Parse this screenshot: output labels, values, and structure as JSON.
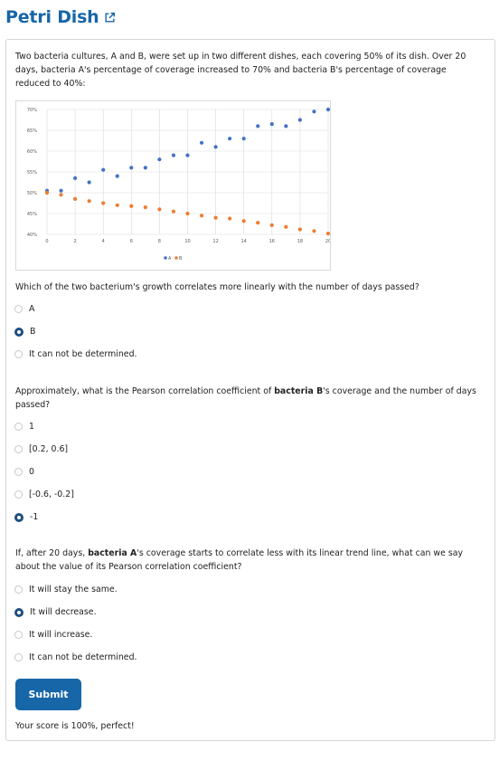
{
  "page": {
    "title": "Petri Dish",
    "intro": "Two bacteria cultures, A and B, were set up in two different dishes, each covering 50% of its dish. Over 20 days, bacteria A's percentage of coverage increased to 70% and bacteria B's percentage of coverage reduced to 40%:"
  },
  "chart_data": {
    "type": "scatter",
    "title": "",
    "xlabel": "",
    "ylabel": "",
    "xlim": [
      0,
      20
    ],
    "ylim": [
      40,
      70
    ],
    "x_ticks": [
      "0",
      "2",
      "4",
      "6",
      "8",
      "10",
      "12",
      "14",
      "16",
      "18",
      "20"
    ],
    "y_ticks": [
      "40%",
      "45%",
      "50%",
      "55%",
      "60%",
      "65%",
      "70%"
    ],
    "grid": true,
    "legend_position": "bottom",
    "series": [
      {
        "name": "A",
        "color": "#4472c4",
        "x": [
          0,
          1,
          2,
          3,
          4,
          5,
          6,
          7,
          8,
          9,
          10,
          11,
          12,
          13,
          14,
          15,
          16,
          17,
          18,
          19,
          20
        ],
        "y": [
          50.5,
          50.5,
          53.5,
          52.5,
          55.5,
          54,
          56,
          56,
          58,
          59,
          59,
          62,
          61,
          63,
          63,
          66,
          66.5,
          66,
          67.5,
          69.5,
          70
        ]
      },
      {
        "name": "B",
        "color": "#ed7d31",
        "x": [
          0,
          1,
          2,
          3,
          4,
          5,
          6,
          7,
          8,
          9,
          10,
          11,
          12,
          13,
          14,
          15,
          16,
          17,
          18,
          19,
          20
        ],
        "y": [
          50,
          49.5,
          48.5,
          48,
          47.5,
          47,
          46.8,
          46.5,
          46,
          45.5,
          45,
          44.5,
          44,
          43.8,
          43.2,
          42.8,
          42.2,
          41.8,
          41.2,
          40.8,
          40.2
        ]
      }
    ]
  },
  "q1": {
    "text": "Which of the two bacterium's growth correlates more linearly with the number of days passed?",
    "options": [
      "A",
      "B",
      "It can not be determined."
    ],
    "selected": 1
  },
  "q2": {
    "text_pre": "Approximately, what is the Pearson correlation coefficient of ",
    "text_bold": "bacteria B",
    "text_post": "'s coverage and the number of days passed?",
    "options": [
      "1",
      "[0.2, 0.6]",
      "0",
      "[-0.6, -0.2]",
      "-1"
    ],
    "selected": 4
  },
  "q3": {
    "text_pre": "If, after 20 days, ",
    "text_bold": "bacteria A",
    "text_post": "'s coverage starts to correlate less with its linear trend line, what can we say about the value of its Pearson correlation coefficient?",
    "options": [
      "It will stay the same.",
      "It will decrease.",
      "It will increase.",
      "It can not be determined."
    ],
    "selected": 1
  },
  "submit_label": "Submit",
  "score_text": "Your score is 100%, perfect!"
}
